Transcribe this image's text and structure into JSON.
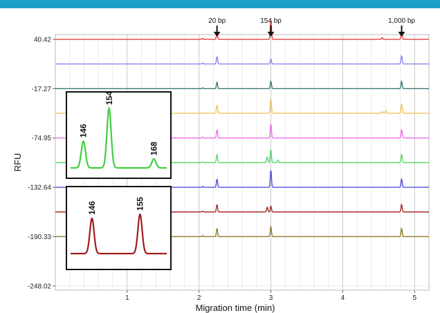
{
  "header": {
    "color": "#1aa0c6"
  },
  "chart_data": {
    "type": "line",
    "xlabel": "Migration time (min)",
    "ylabel": "RFU",
    "xlim": [
      0.0,
      5.2
    ],
    "x_ticks": [
      "1",
      "2",
      "3",
      "4",
      "5"
    ],
    "y_ticks": [
      "40.42",
      "-17.27",
      "-74.95",
      "-132.64",
      "-190.33",
      "-248.02"
    ],
    "y_tick_values": [
      40.42,
      -17.27,
      -74.95,
      -132.64,
      -190.33,
      -248.02
    ],
    "grid": true,
    "markers": [
      {
        "label": "20 bp",
        "x": 2.25
      },
      {
        "label": "154 bp",
        "x": 3.0
      },
      {
        "label": "1,000 bp",
        "x": 4.82
      }
    ],
    "series": [
      {
        "color": "#e8403a",
        "baseline": 40.42,
        "peaks": [
          [
            2.25,
            9
          ],
          [
            3.0,
            24
          ],
          [
            4.82,
            10
          ],
          [
            4.55,
            2
          ],
          [
            2.05,
            1
          ]
        ]
      },
      {
        "color": "#8a86f0",
        "baseline": 11.57,
        "peaks": [
          [
            2.25,
            9
          ],
          [
            3.0,
            6
          ],
          [
            4.82,
            10
          ],
          [
            2.05,
            1
          ]
        ]
      },
      {
        "color": "#3a7d78",
        "baseline": -17.27,
        "peaks": [
          [
            2.25,
            8
          ],
          [
            3.0,
            9
          ],
          [
            4.82,
            9
          ],
          [
            2.05,
            1
          ]
        ]
      },
      {
        "color": "#f2c35c",
        "baseline": -46.11,
        "peaks": [
          [
            2.25,
            10
          ],
          [
            3.0,
            17
          ],
          [
            4.82,
            11
          ],
          [
            4.6,
            3
          ],
          [
            4.55,
            2
          ],
          [
            2.05,
            1
          ]
        ]
      },
      {
        "color": "#f06ff0",
        "baseline": -74.95,
        "peaks": [
          [
            2.25,
            10
          ],
          [
            3.0,
            17
          ],
          [
            4.82,
            10
          ],
          [
            2.05,
            1
          ]
        ]
      },
      {
        "color": "#5ed66a",
        "baseline": -103.8,
        "peaks": [
          [
            2.25,
            10
          ],
          [
            2.95,
            7
          ],
          [
            3.0,
            16
          ],
          [
            3.1,
            3
          ],
          [
            4.82,
            10
          ],
          [
            2.05,
            1
          ]
        ]
      },
      {
        "color": "#4e4ee0",
        "baseline": -132.64,
        "peaks": [
          [
            2.25,
            10
          ],
          [
            3.0,
            21
          ],
          [
            4.82,
            10
          ],
          [
            2.05,
            1
          ]
        ]
      },
      {
        "color": "#a82a2a",
        "baseline": -161.48,
        "peaks": [
          [
            2.25,
            9
          ],
          [
            2.95,
            6
          ],
          [
            3.0,
            7
          ],
          [
            4.82,
            9
          ],
          [
            2.05,
            1
          ]
        ]
      },
      {
        "color": "#8b7a2a",
        "baseline": -190.33,
        "peaks": [
          [
            2.25,
            10
          ],
          [
            3.0,
            12
          ],
          [
            4.82,
            10
          ],
          [
            2.05,
            1
          ]
        ]
      }
    ],
    "insets": [
      {
        "color": "#3ecf3e",
        "peaks": [
          {
            "label": "146",
            "x": 146,
            "h": 0.45
          },
          {
            "label": "154",
            "x": 154,
            "h": 1.0
          },
          {
            "label": "168",
            "x": 168,
            "h": 0.15
          }
        ],
        "xlim": [
          142,
          172
        ]
      },
      {
        "color": "#a01c1c",
        "peaks": [
          {
            "label": "146",
            "x": 146,
            "h": 0.7
          },
          {
            "label": "155",
            "x": 155,
            "h": 0.78
          }
        ],
        "xlim": [
          142,
          160
        ]
      }
    ]
  }
}
